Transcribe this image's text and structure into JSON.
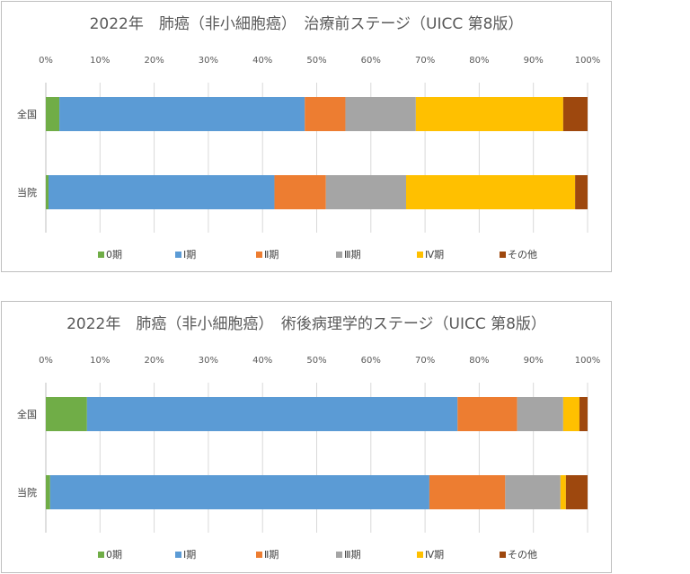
{
  "chart_data": [
    {
      "type": "bar",
      "orientation": "horizontal",
      "stacked": "percent",
      "title": "2022年　肺癌（非小細胞癌）　治療前ステージ（UICC 第8版）",
      "categories": [
        "全国",
        "当院"
      ],
      "xlim": [
        0,
        100
      ],
      "x_tick_labels": [
        "0%",
        "10%",
        "20%",
        "30%",
        "40%",
        "50%",
        "60%",
        "70%",
        "80%",
        "90%",
        "100%"
      ],
      "legend_position": "bottom",
      "series": [
        {
          "name": "0期",
          "color": "#70ad47",
          "values": [
            2.5,
            0.5
          ]
        },
        {
          "name": "Ⅰ期",
          "color": "#5b9bd5",
          "values": [
            45.3,
            41.7
          ]
        },
        {
          "name": "Ⅱ期",
          "color": "#ed7d31",
          "values": [
            7.5,
            9.5
          ]
        },
        {
          "name": "Ⅲ期",
          "color": "#a5a5a5",
          "values": [
            13.0,
            14.8
          ]
        },
        {
          "name": "Ⅳ期",
          "color": "#ffc000",
          "values": [
            27.2,
            31.2
          ]
        },
        {
          "name": "その他",
          "color": "#9e480e",
          "values": [
            4.5,
            2.3
          ]
        }
      ]
    },
    {
      "type": "bar",
      "orientation": "horizontal",
      "stacked": "percent",
      "title": "2022年　肺癌（非小細胞癌）　術後病理学的ステージ（UICC 第8版）",
      "categories": [
        "全国",
        "当院"
      ],
      "xlim": [
        0,
        100
      ],
      "x_tick_labels": [
        "0%",
        "10%",
        "20%",
        "30%",
        "40%",
        "50%",
        "60%",
        "70%",
        "80%",
        "90%",
        "100%"
      ],
      "legend_position": "bottom",
      "series": [
        {
          "name": "0期",
          "color": "#70ad47",
          "values": [
            7.6,
            0.8
          ]
        },
        {
          "name": "Ⅰ期",
          "color": "#5b9bd5",
          "values": [
            68.4,
            70.0
          ]
        },
        {
          "name": "Ⅱ期",
          "color": "#ed7d31",
          "values": [
            11.0,
            14.0
          ]
        },
        {
          "name": "Ⅲ期",
          "color": "#a5a5a5",
          "values": [
            8.5,
            10.2
          ]
        },
        {
          "name": "Ⅳ期",
          "color": "#ffc000",
          "values": [
            3.0,
            1.0
          ]
        },
        {
          "name": "その他",
          "color": "#9e480e",
          "values": [
            1.5,
            4.0
          ]
        }
      ]
    }
  ]
}
